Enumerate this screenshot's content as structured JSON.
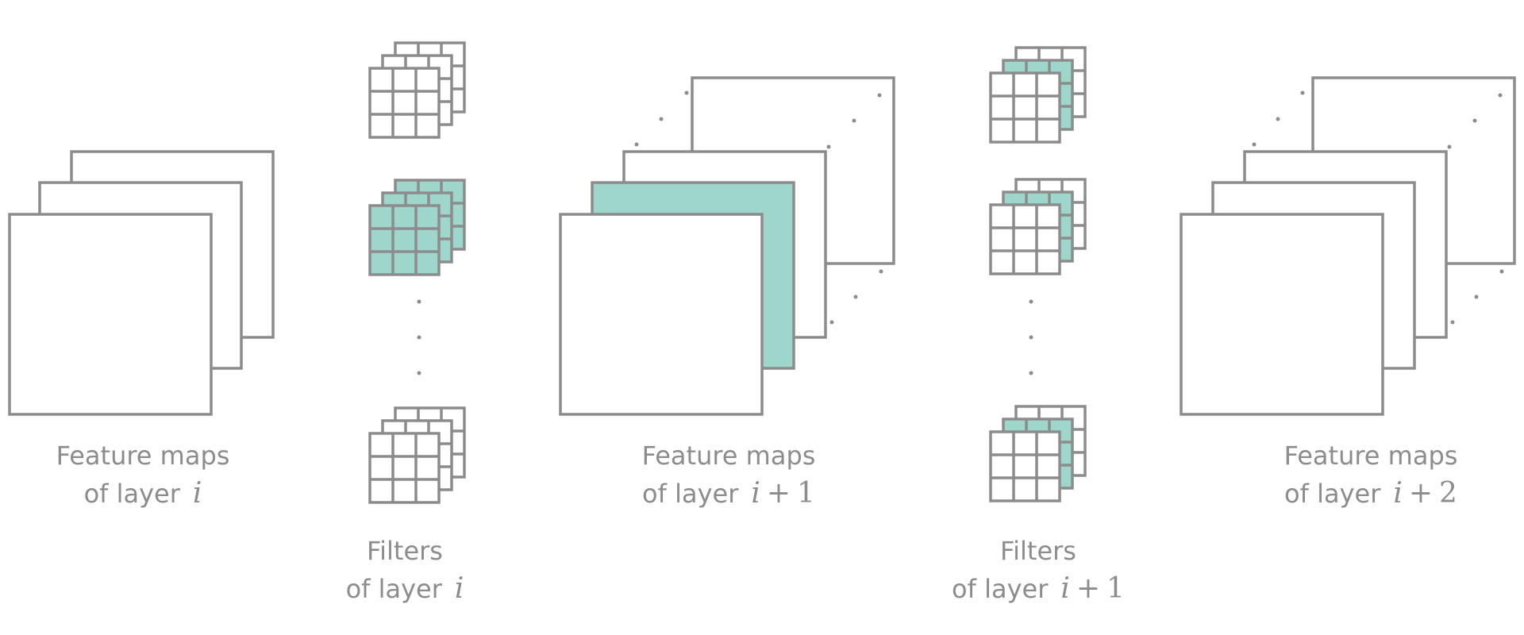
{
  "colors": {
    "stroke": "#8c8c8c",
    "highlight": "#9fd6cc",
    "text": "#8c8c8c",
    "background": "#ffffff"
  },
  "labels": {
    "fm_i": {
      "line1": "Feature maps",
      "line2": "of layer",
      "math_var": "i",
      "math_op": "",
      "math_num": ""
    },
    "fm_i1": {
      "line1": "Feature maps",
      "line2": "of layer",
      "math_var": "i",
      "math_op": "+",
      "math_num": "1"
    },
    "fm_i2": {
      "line1": "Feature maps",
      "line2": "of layer",
      "math_var": "i",
      "math_op": "+",
      "math_num": "2"
    },
    "flt_i": {
      "line1": "Filters",
      "line2": "of layer",
      "math_var": "i",
      "math_op": "",
      "math_num": ""
    },
    "flt_i1": {
      "line1": "Filters",
      "line2": "of layer",
      "math_var": "i",
      "math_op": "+",
      "math_num": "1"
    }
  },
  "ellipsis": "·"
}
